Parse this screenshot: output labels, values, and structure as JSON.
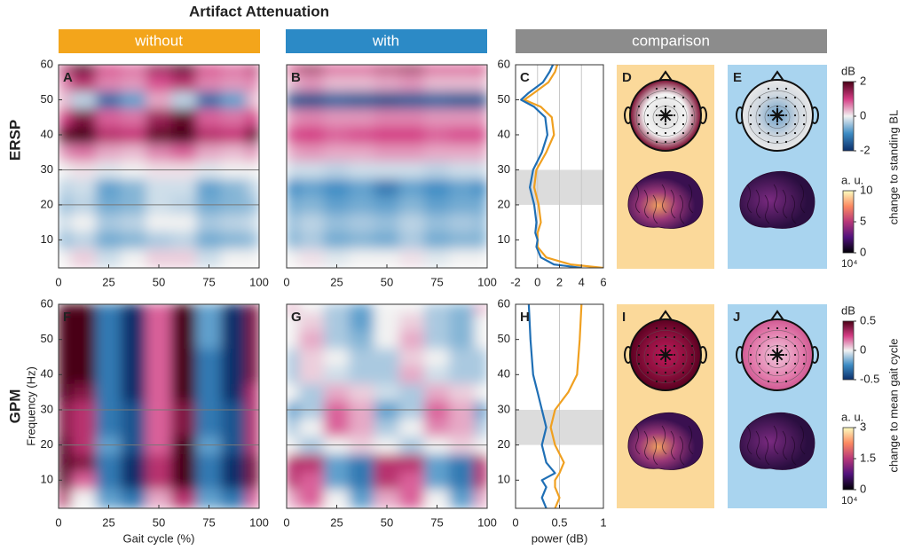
{
  "title": "Artifact Attenuation",
  "headers": [
    "without",
    "with",
    "comparison"
  ],
  "row_labels": [
    "ERSP",
    "GPM"
  ],
  "panels": [
    "D",
    "E",
    "I",
    "J"
  ],
  "chart_data": [
    {
      "type": "heatmap",
      "label": "A",
      "x": [
        0,
        12.5,
        25,
        37.5,
        50,
        62.5,
        75,
        87.5,
        100
      ],
      "y": [
        5,
        10,
        15,
        20,
        25,
        30,
        35,
        40,
        45,
        50,
        55,
        60
      ],
      "z": [
        [
          0,
          0.2,
          -0.2,
          0,
          0.2,
          0.2,
          -0.2,
          0,
          0
        ],
        [
          -0.5,
          -0.3,
          -0.7,
          -0.6,
          -0.4,
          -0.3,
          -0.7,
          -0.6,
          -0.5
        ],
        [
          -0.2,
          0,
          -0.4,
          -0.3,
          0,
          0,
          -0.4,
          -0.3,
          -0.2
        ],
        [
          -0.5,
          -0.3,
          -0.7,
          -0.6,
          -0.2,
          -0.3,
          -0.7,
          -0.6,
          -0.5
        ],
        [
          -0.3,
          -0.2,
          -0.8,
          -0.6,
          -0.2,
          -0.2,
          -0.8,
          -0.6,
          -0.3
        ],
        [
          0,
          0.1,
          -0.1,
          0,
          0.1,
          0.1,
          -0.1,
          0,
          0
        ],
        [
          0.5,
          0.7,
          0.4,
          0.3,
          0.6,
          0.8,
          0.4,
          0.3,
          0.5
        ],
        [
          1.8,
          2,
          1.2,
          1.1,
          1.8,
          2,
          1.2,
          1.1,
          1.8
        ],
        [
          1,
          1.6,
          0.8,
          0.7,
          1.4,
          1.8,
          0.8,
          0.7,
          1
        ],
        [
          0.3,
          -0.3,
          -1.3,
          -0.8,
          0.4,
          -0.3,
          -1.3,
          -0.8,
          0.3
        ],
        [
          0.6,
          1.2,
          0.6,
          0.5,
          0.9,
          1.2,
          0.6,
          0.5,
          0.6
        ],
        [
          1.2,
          2,
          1,
          0.8,
          1.5,
          2,
          1,
          0.8,
          1.2
        ]
      ],
      "zlim": [
        -2,
        2
      ],
      "colormap": [
        "#0b2f6b",
        "#3d8cc4",
        "#f2f2f2",
        "#d43c84",
        "#4a0016"
      ],
      "xlim": [
        0,
        100
      ],
      "ylim": [
        2,
        60
      ],
      "xticks": [
        0,
        25,
        50,
        75,
        100
      ],
      "yticks": [
        10,
        20,
        30,
        40,
        50,
        60
      ],
      "band": [
        20,
        30
      ]
    },
    {
      "type": "heatmap",
      "label": "B",
      "x": [
        0,
        12.5,
        25,
        37.5,
        50,
        62.5,
        75,
        87.5,
        100
      ],
      "y": [
        5,
        10,
        15,
        20,
        25,
        30,
        35,
        40,
        45,
        50,
        55,
        60
      ],
      "z": [
        [
          0,
          0.1,
          -0.1,
          0,
          0,
          0.1,
          -0.1,
          0,
          0
        ],
        [
          -0.6,
          -0.4,
          -0.7,
          -0.6,
          -0.7,
          -0.4,
          -0.7,
          -0.6,
          -0.6
        ],
        [
          -0.5,
          -0.3,
          -0.5,
          -0.4,
          -0.5,
          -0.3,
          -0.5,
          -0.4,
          -0.5
        ],
        [
          -0.7,
          -0.6,
          -0.8,
          -0.7,
          -0.8,
          -0.6,
          -0.8,
          -0.7,
          -0.7
        ],
        [
          -1,
          -0.8,
          -1,
          -0.8,
          -1.2,
          -0.8,
          -1,
          -0.8,
          -1
        ],
        [
          -0.2,
          -0.2,
          -0.3,
          -0.2,
          -0.2,
          -0.2,
          -0.3,
          -0.2,
          -0.2
        ],
        [
          0.4,
          0.5,
          0.4,
          0.4,
          0.5,
          0.5,
          0.4,
          0.4,
          0.4
        ],
        [
          0.9,
          1,
          0.8,
          0.9,
          1,
          1,
          0.8,
          0.9,
          0.9
        ],
        [
          0.5,
          0.6,
          0.5,
          0.5,
          0.6,
          0.6,
          0.5,
          0.5,
          0.5
        ],
        [
          -1.5,
          -1.6,
          -1.4,
          -1.5,
          -1.6,
          -1.5,
          -1.4,
          -1.5,
          -1.5
        ],
        [
          0.3,
          0.5,
          0.3,
          0.3,
          0.4,
          0.5,
          0.3,
          0.3,
          0.3
        ],
        [
          1,
          1.4,
          0.9,
          0.9,
          1.2,
          1.4,
          0.9,
          0.9,
          1
        ]
      ],
      "zlim": [
        -2,
        2
      ],
      "colormap": [
        "#0b2f6b",
        "#3d8cc4",
        "#f2f2f2",
        "#d43c84",
        "#4a0016"
      ],
      "xlim": [
        0,
        100
      ],
      "ylim": [
        2,
        60
      ],
      "xticks": [
        0,
        25,
        50,
        75,
        100
      ]
    },
    {
      "type": "line",
      "label": "C",
      "y": [
        2,
        3,
        5,
        8,
        10,
        12,
        15,
        20,
        25,
        30,
        35,
        40,
        45,
        48,
        50,
        52,
        55,
        58,
        60
      ],
      "series": [
        {
          "color": "#f0a020",
          "values": [
            6,
            3,
            0.8,
            0,
            0,
            0,
            0.3,
            0.1,
            -0.3,
            -0.1,
            0.8,
            1.5,
            1.3,
            0.3,
            -1.2,
            -0.3,
            1,
            1.6,
            1.8
          ]
        },
        {
          "color": "#1f6fb5",
          "values": [
            4,
            1.5,
            0.3,
            -0.1,
            0,
            -0.2,
            -0.1,
            -0.3,
            -0.7,
            -0.4,
            0.4,
            0.9,
            0.7,
            -0.3,
            -1.5,
            -0.8,
            0.5,
            1.1,
            1.4
          ]
        }
      ],
      "xlim": [
        -2,
        6
      ],
      "ylim": [
        2,
        60
      ],
      "xticks": [
        -2,
        0,
        2,
        4,
        6
      ],
      "yticks": [
        10,
        20,
        30,
        40,
        50,
        60
      ],
      "band": [
        20,
        30
      ],
      "grid": true
    },
    {
      "type": "heatmap",
      "label": "F",
      "x": [
        0,
        12.5,
        25,
        37.5,
        50,
        62.5,
        75,
        87.5,
        100
      ],
      "y": [
        5,
        10,
        15,
        20,
        25,
        30,
        35,
        40,
        45,
        50,
        55,
        60
      ],
      "z": [
        [
          0.3,
          0,
          -0.2,
          -0.3,
          0.1,
          0.3,
          -0.2,
          -0.3,
          0.2
        ],
        [
          0.5,
          0.2,
          -0.3,
          -0.6,
          0.3,
          0.5,
          -0.3,
          -0.6,
          0.4
        ],
        [
          0.6,
          0.4,
          -0.3,
          -0.5,
          0.3,
          0.6,
          -0.3,
          -0.5,
          0.4
        ],
        [
          0.5,
          0.3,
          -0.2,
          -0.4,
          0.2,
          0.5,
          -0.2,
          -0.4,
          0.3
        ],
        [
          0.4,
          0.3,
          -0.3,
          -0.4,
          0.2,
          0.4,
          -0.3,
          -0.4,
          0.3
        ],
        [
          0.4,
          0.3,
          -0.3,
          -0.4,
          0.2,
          0.4,
          -0.3,
          -0.4,
          0.3
        ],
        [
          0.5,
          0.4,
          -0.3,
          -0.5,
          0.2,
          0.5,
          -0.3,
          -0.5,
          0.3
        ],
        [
          0.6,
          0.5,
          -0.3,
          -0.5,
          0.2,
          0.6,
          -0.3,
          -0.5,
          0.4
        ],
        [
          0.6,
          0.5,
          -0.3,
          -0.6,
          0.2,
          0.6,
          -0.3,
          -0.6,
          0.4
        ],
        [
          0.6,
          0.5,
          -0.3,
          -0.6,
          0.2,
          0.6,
          -0.2,
          -0.6,
          0.4
        ],
        [
          0.6,
          0.5,
          -0.3,
          -0.5,
          0.2,
          0.6,
          -0.2,
          -0.5,
          0.4
        ],
        [
          0.6,
          0.5,
          -0.3,
          -0.5,
          0.2,
          0.6,
          -0.2,
          -0.5,
          0.4
        ]
      ],
      "zlim": [
        -0.5,
        0.5
      ],
      "colormap": [
        "#0b2f6b",
        "#3d8cc4",
        "#f2f2f2",
        "#d43c84",
        "#4a0016"
      ],
      "xlim": [
        0,
        100
      ],
      "ylim": [
        2,
        60
      ],
      "xticks": [
        0,
        25,
        50,
        75,
        100
      ],
      "yticks": [
        10,
        20,
        30,
        40,
        50,
        60
      ],
      "band": [
        20,
        30
      ],
      "xlabel": "Gait cycle (%)",
      "ylabel": "Frequency (Hz)"
    },
    {
      "type": "heatmap",
      "label": "G",
      "x": [
        0,
        12.5,
        25,
        37.5,
        50,
        62.5,
        75,
        87.5,
        100
      ],
      "y": [
        5,
        10,
        15,
        20,
        25,
        30,
        35,
        40,
        45,
        50,
        55,
        60
      ],
      "z": [
        [
          0.1,
          0.2,
          0,
          -0.2,
          0.1,
          0.2,
          0,
          -0.2,
          0.1
        ],
        [
          0.3,
          0.2,
          -0.2,
          -0.3,
          0.3,
          0.2,
          -0.2,
          -0.3,
          0.3
        ],
        [
          0.3,
          0.3,
          -0.2,
          -0.3,
          0.3,
          0.3,
          -0.2,
          -0.3,
          0.3
        ],
        [
          0,
          -0.1,
          0,
          0.05,
          0,
          -0.1,
          0,
          0.05,
          0
        ],
        [
          -0.1,
          0,
          0.2,
          0.1,
          -0.1,
          0,
          0.15,
          0.1,
          -0.1
        ],
        [
          -0.2,
          -0.1,
          0.2,
          0.1,
          -0.2,
          -0.1,
          0.2,
          0.1,
          -0.2
        ],
        [
          0,
          -0.1,
          0.1,
          0.05,
          -0.05,
          -0.1,
          0.1,
          0.05,
          0
        ],
        [
          -0.1,
          0.05,
          -0.05,
          -0.1,
          -0.1,
          0.1,
          -0.05,
          -0.1,
          -0.1
        ],
        [
          -0.1,
          0.05,
          0,
          -0.1,
          -0.1,
          0.05,
          0,
          -0.1,
          -0.1
        ],
        [
          0,
          0.1,
          -0.1,
          -0.15,
          0,
          0.1,
          -0.1,
          -0.15,
          0
        ],
        [
          0,
          0.05,
          -0.1,
          -0.2,
          0,
          0.05,
          -0.1,
          -0.15,
          0
        ],
        [
          0.1,
          0,
          -0.1,
          -0.2,
          0,
          0,
          -0.1,
          -0.15,
          0.1
        ]
      ],
      "zlim": [
        -0.5,
        0.5
      ],
      "colormap": [
        "#0b2f6b",
        "#3d8cc4",
        "#f2f2f2",
        "#d43c84",
        "#4a0016"
      ],
      "xlim": [
        0,
        100
      ],
      "ylim": [
        2,
        60
      ],
      "xticks": [
        0,
        25,
        50,
        75,
        100
      ],
      "band": [
        20,
        30
      ]
    },
    {
      "type": "line",
      "label": "H",
      "y": [
        2,
        5,
        8,
        10,
        12,
        15,
        20,
        25,
        30,
        35,
        40,
        50,
        60
      ],
      "series": [
        {
          "color": "#f0a020",
          "values": [
            0.45,
            0.5,
            0.45,
            0.45,
            0.5,
            0.55,
            0.45,
            0.4,
            0.45,
            0.6,
            0.7,
            0.73,
            0.75
          ]
        },
        {
          "color": "#1f6fb5",
          "values": [
            0.35,
            0.3,
            0.35,
            0.3,
            0.45,
            0.35,
            0.3,
            0.35,
            0.3,
            0.25,
            0.2,
            0.17,
            0.15
          ]
        }
      ],
      "xlim": [
        0,
        1
      ],
      "ylim": [
        2,
        60
      ],
      "xticks": [
        0,
        0.5,
        1
      ],
      "yticks": [
        10,
        20,
        30,
        40,
        50,
        60
      ],
      "band": [
        20,
        30
      ],
      "grid": true,
      "xlabel": "power (dB)"
    }
  ],
  "colorbars": [
    {
      "unit": "dB",
      "lim": [
        -2,
        2
      ],
      "ticks": [
        2,
        0,
        -2
      ],
      "colormap": [
        "#0b2f6b",
        "#3d8cc4",
        "#f2f2f2",
        "#d43c84",
        "#4a0016"
      ],
      "caption": "change to standing BL"
    },
    {
      "unit": "a. u.",
      "lim": [
        0,
        10
      ],
      "ticks": [
        10,
        5,
        0
      ],
      "colormap": [
        "#000004",
        "#51127c",
        "#b73779",
        "#fc8961",
        "#fcfdbf"
      ],
      "exponent": "10⁴"
    },
    {
      "unit": "dB",
      "lim": [
        -0.5,
        0.5
      ],
      "ticks": [
        0.5,
        0,
        -0.5
      ],
      "colormap": [
        "#0b2f6b",
        "#3d8cc4",
        "#f2f2f2",
        "#d43c84",
        "#4a0016"
      ],
      "caption": "change to mean gait cycle"
    },
    {
      "unit": "a. u.",
      "lim": [
        0,
        3
      ],
      "ticks": [
        3,
        1.5,
        0
      ],
      "colormap": [
        "#000004",
        "#51127c",
        "#b73779",
        "#fc8961",
        "#fcfdbf"
      ],
      "exponent": "10⁴"
    }
  ]
}
